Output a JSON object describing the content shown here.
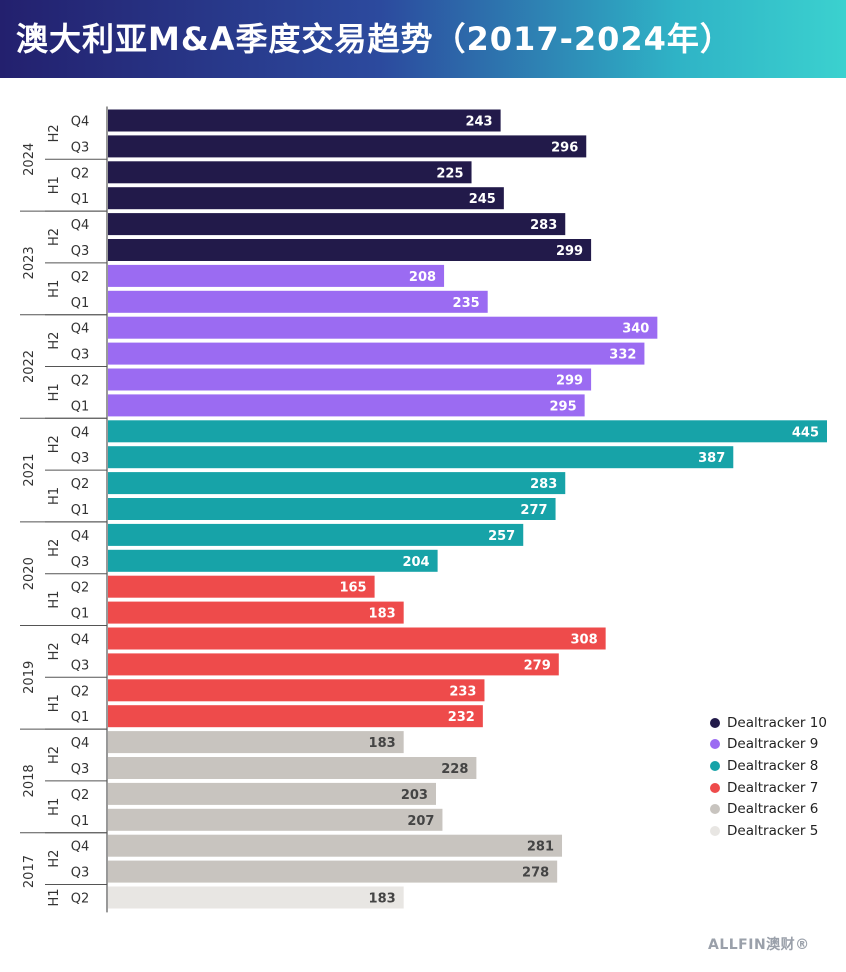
{
  "title": "澳大利亚M&A季度交易趋势（2017-2024年）",
  "footer_logo": "ALLFIN澳财®",
  "chart_data": {
    "type": "bar",
    "orientation": "horizontal",
    "title": "澳大利亚M&A季度交易趋势（2017-2024年）",
    "xlim": [
      0,
      445
    ],
    "grid": false,
    "legend_position": "bottom-right",
    "series_colors": {
      "Dealtracker 10": "#221a4a",
      "Dealtracker 9": "#9b6bf2",
      "Dealtracker 8": "#17a3a8",
      "Dealtracker 7": "#ee4b4b",
      "Dealtracker 6": "#c8c4bf",
      "Dealtracker 5": "#e8e6e3"
    },
    "legend": [
      "Dealtracker 10",
      "Dealtracker 9",
      "Dealtracker 8",
      "Dealtracker 7",
      "Dealtracker 6",
      "Dealtracker 5"
    ],
    "years": [
      {
        "year": "2024",
        "halves": [
          {
            "half": "H2",
            "quarters": [
              {
                "q": "Q4",
                "value": 243,
                "series": "Dealtracker 10"
              },
              {
                "q": "Q3",
                "value": 296,
                "series": "Dealtracker 10"
              }
            ]
          },
          {
            "half": "H1",
            "quarters": [
              {
                "q": "Q2",
                "value": 225,
                "series": "Dealtracker 10"
              },
              {
                "q": "Q1",
                "value": 245,
                "series": "Dealtracker 10"
              }
            ]
          }
        ]
      },
      {
        "year": "2023",
        "halves": [
          {
            "half": "H2",
            "quarters": [
              {
                "q": "Q4",
                "value": 283,
                "series": "Dealtracker 10"
              },
              {
                "q": "Q3",
                "value": 299,
                "series": "Dealtracker 10"
              }
            ]
          },
          {
            "half": "H1",
            "quarters": [
              {
                "q": "Q2",
                "value": 208,
                "series": "Dealtracker 9"
              },
              {
                "q": "Q1",
                "value": 235,
                "series": "Dealtracker 9"
              }
            ]
          }
        ]
      },
      {
        "year": "2022",
        "halves": [
          {
            "half": "H2",
            "quarters": [
              {
                "q": "Q4",
                "value": 340,
                "series": "Dealtracker 9"
              },
              {
                "q": "Q3",
                "value": 332,
                "series": "Dealtracker 9"
              }
            ]
          },
          {
            "half": "H1",
            "quarters": [
              {
                "q": "Q2",
                "value": 299,
                "series": "Dealtracker 9"
              },
              {
                "q": "Q1",
                "value": 295,
                "series": "Dealtracker 9"
              }
            ]
          }
        ]
      },
      {
        "year": "2021",
        "halves": [
          {
            "half": "H2",
            "quarters": [
              {
                "q": "Q4",
                "value": 445,
                "series": "Dealtracker 8"
              },
              {
                "q": "Q3",
                "value": 387,
                "series": "Dealtracker 8"
              }
            ]
          },
          {
            "half": "H1",
            "quarters": [
              {
                "q": "Q2",
                "value": 283,
                "series": "Dealtracker 8"
              },
              {
                "q": "Q1",
                "value": 277,
                "series": "Dealtracker 8"
              }
            ]
          }
        ]
      },
      {
        "year": "2020",
        "halves": [
          {
            "half": "H2",
            "quarters": [
              {
                "q": "Q4",
                "value": 257,
                "series": "Dealtracker 8"
              },
              {
                "q": "Q3",
                "value": 204,
                "series": "Dealtracker 8"
              }
            ]
          },
          {
            "half": "H1",
            "quarters": [
              {
                "q": "Q2",
                "value": 165,
                "series": "Dealtracker 7"
              },
              {
                "q": "Q1",
                "value": 183,
                "series": "Dealtracker 7"
              }
            ]
          }
        ]
      },
      {
        "year": "2019",
        "halves": [
          {
            "half": "H2",
            "quarters": [
              {
                "q": "Q4",
                "value": 308,
                "series": "Dealtracker 7"
              },
              {
                "q": "Q3",
                "value": 279,
                "series": "Dealtracker 7"
              }
            ]
          },
          {
            "half": "H1",
            "quarters": [
              {
                "q": "Q2",
                "value": 233,
                "series": "Dealtracker 7"
              },
              {
                "q": "Q1",
                "value": 232,
                "series": "Dealtracker 7"
              }
            ]
          }
        ]
      },
      {
        "year": "2018",
        "halves": [
          {
            "half": "H2",
            "quarters": [
              {
                "q": "Q4",
                "value": 183,
                "series": "Dealtracker 6"
              },
              {
                "q": "Q3",
                "value": 228,
                "series": "Dealtracker 6"
              }
            ]
          },
          {
            "half": "H1",
            "quarters": [
              {
                "q": "Q2",
                "value": 203,
                "series": "Dealtracker 6"
              },
              {
                "q": "Q1",
                "value": 207,
                "series": "Dealtracker 6"
              }
            ]
          }
        ]
      },
      {
        "year": "2017",
        "halves": [
          {
            "half": "H2",
            "quarters": [
              {
                "q": "Q4",
                "value": 281,
                "series": "Dealtracker 6"
              },
              {
                "q": "Q3",
                "value": 278,
                "series": "Dealtracker 6"
              }
            ]
          },
          {
            "half": "H1",
            "quarters": [
              {
                "q": "Q2",
                "value": 183,
                "series": "Dealtracker 5"
              }
            ]
          }
        ]
      }
    ]
  }
}
